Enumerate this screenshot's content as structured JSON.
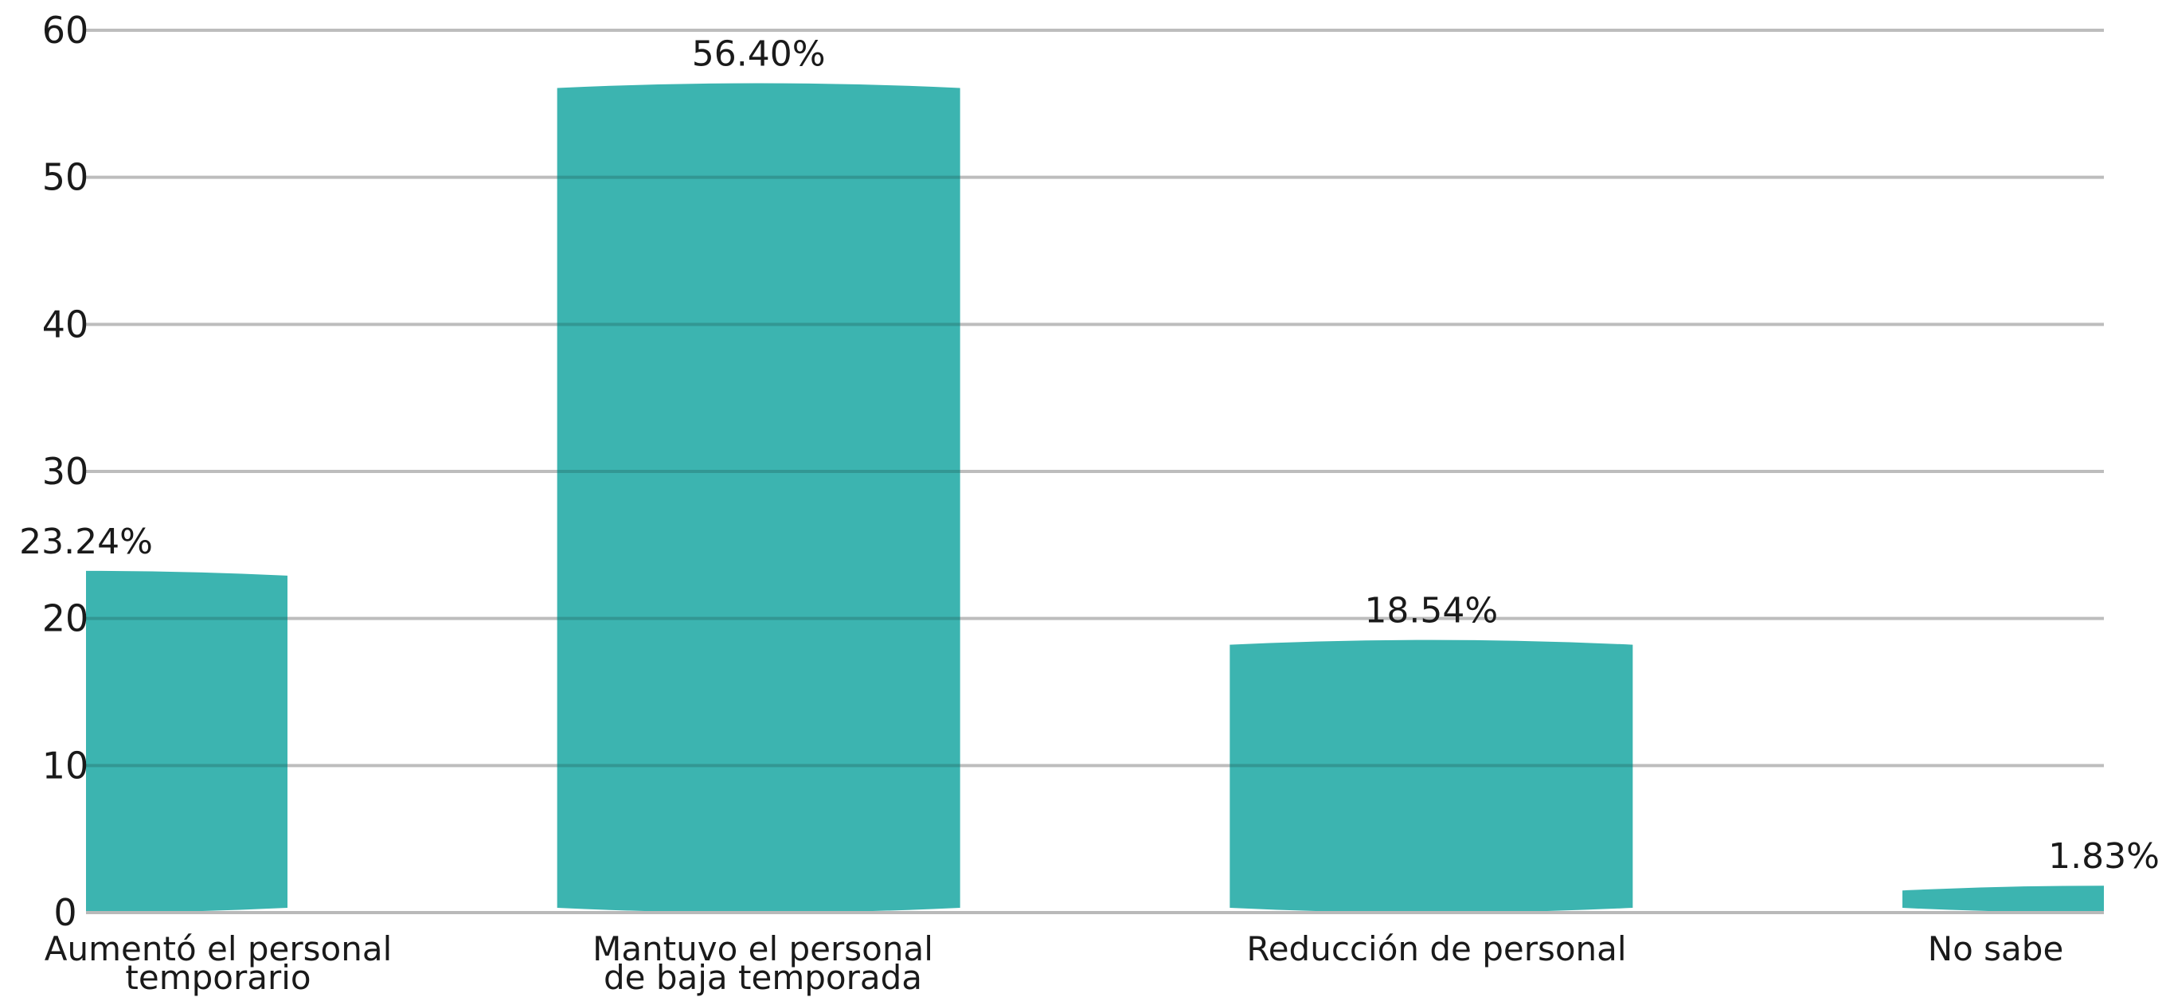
{
  "chart_data": {
    "type": "bar",
    "categories": [
      [
        "Aumentó el personal",
        "temporario"
      ],
      [
        "Mantuvo el personal",
        "de baja temporada"
      ],
      [
        "Reducción de personal"
      ],
      [
        "No sabe"
      ]
    ],
    "values": [
      23.24,
      56.4,
      18.54,
      1.83
    ],
    "data_labels": [
      "23.24%",
      "56.40%",
      "18.54%",
      "1.83%"
    ],
    "yticks": [
      "0",
      "10",
      "20",
      "30",
      "40",
      "50",
      "60"
    ],
    "ylim": [
      0,
      60
    ],
    "grid": true,
    "bar_color": "#3cb4b0"
  }
}
